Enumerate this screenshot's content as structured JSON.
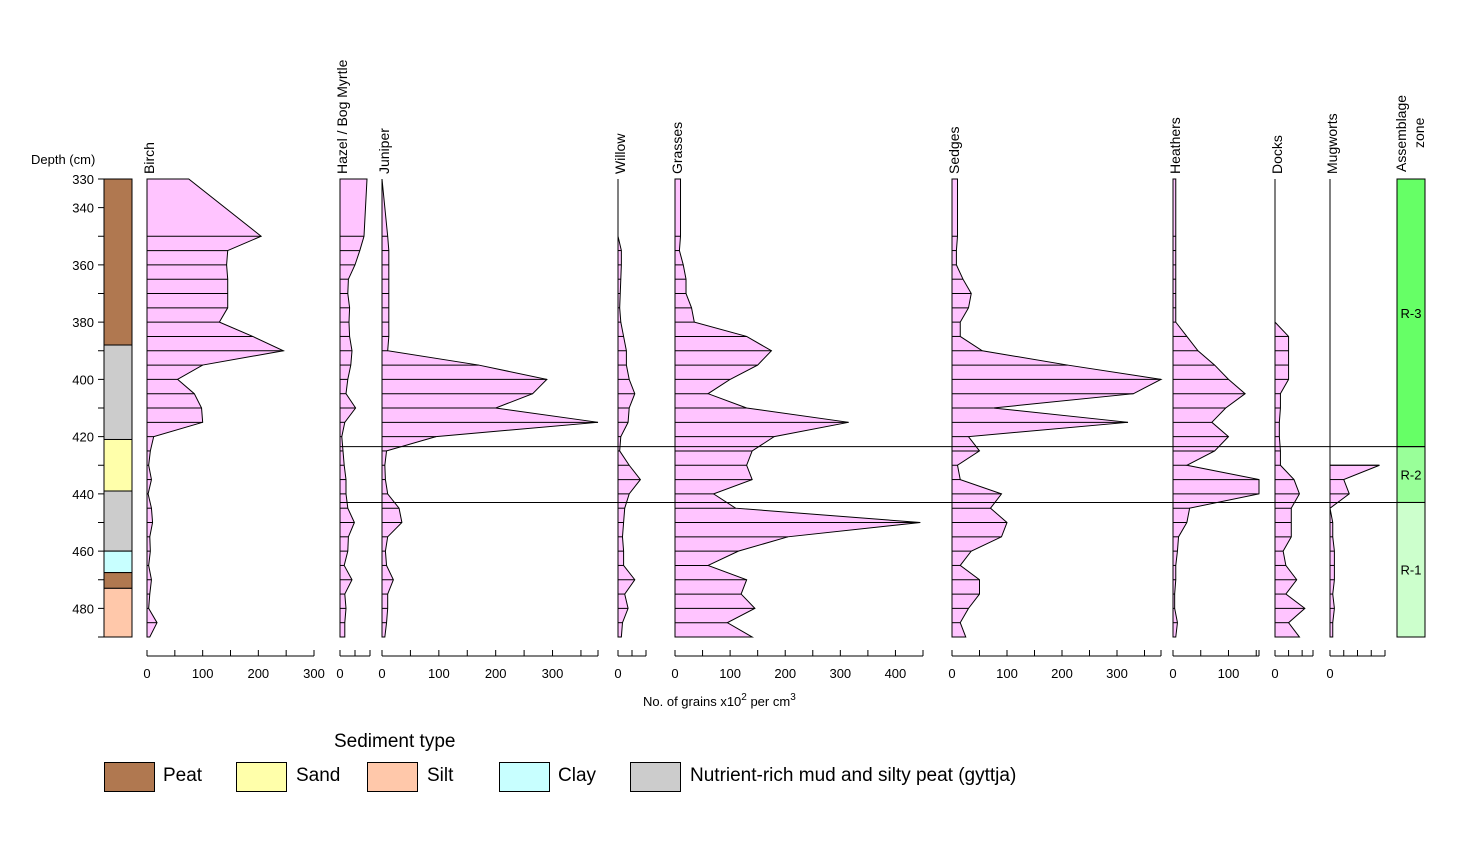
{
  "chart_data": {
    "type": "area",
    "title": "",
    "depth_label": "Depth (cm)",
    "x_label": "No. of grains x10",
    "x_label_sup": "2",
    "x_label_mid": " per cm",
    "x_label_sup2": "3",
    "depth_range": [
      330,
      490
    ],
    "depth_ticks": [
      330,
      340,
      360,
      380,
      400,
      420,
      440,
      460,
      480
    ],
    "depths": [
      330,
      350,
      355,
      360,
      365,
      370,
      375,
      380,
      385,
      390,
      395,
      400,
      405,
      410,
      415,
      420,
      425,
      430,
      435,
      440,
      445,
      450,
      455,
      460,
      465,
      470,
      475,
      480,
      485,
      490
    ],
    "fill_color": "#ffc4ff",
    "series": [
      {
        "name": "Birch",
        "max": 300,
        "ticks": [
          0,
          100,
          200,
          300
        ],
        "values": [
          75,
          205,
          145,
          143,
          145,
          145,
          145,
          130,
          190,
          245,
          100,
          55,
          85,
          98,
          100,
          12,
          6,
          3,
          8,
          2,
          8,
          10,
          5,
          6,
          3,
          8,
          5,
          3,
          18,
          5
        ]
      },
      {
        "name": "Hazel / Bog Myrtle",
        "max": 50,
        "ticks": [
          0
        ],
        "values": [
          45,
          40,
          33,
          25,
          14,
          13,
          16,
          15,
          16,
          20,
          18,
          13,
          10,
          26,
          8,
          3,
          5,
          7,
          10,
          10,
          13,
          24,
          14,
          13,
          7,
          20,
          8,
          10,
          8,
          8
        ]
      },
      {
        "name": "Juniper",
        "max": 380,
        "ticks": [
          0,
          100,
          200,
          300
        ],
        "values": [
          0,
          10,
          12,
          12,
          12,
          12,
          12,
          12,
          12,
          10,
          170,
          290,
          265,
          200,
          380,
          95,
          8,
          5,
          6,
          10,
          30,
          35,
          10,
          6,
          8,
          20,
          10,
          10,
          8,
          5
        ]
      },
      {
        "name": "Willow",
        "max": 50,
        "ticks": [
          0
        ],
        "values": [
          0,
          0,
          6,
          6,
          5,
          4,
          3,
          5,
          10,
          15,
          15,
          20,
          30,
          20,
          18,
          5,
          3,
          20,
          40,
          20,
          12,
          10,
          8,
          10,
          10,
          30,
          12,
          18,
          8,
          6
        ]
      },
      {
        "name": "Grasses",
        "max": 450,
        "ticks": [
          0,
          100,
          200,
          300,
          400
        ],
        "values": [
          10,
          10,
          8,
          15,
          20,
          20,
          30,
          35,
          130,
          175,
          150,
          100,
          60,
          130,
          315,
          180,
          140,
          130,
          140,
          70,
          110,
          445,
          205,
          115,
          60,
          130,
          120,
          145,
          95,
          140
        ]
      },
      {
        "name": "Sedges",
        "max": 380,
        "ticks": [
          0,
          100,
          200,
          300
        ],
        "values": [
          10,
          10,
          8,
          8,
          20,
          35,
          30,
          15,
          15,
          55,
          210,
          380,
          330,
          75,
          320,
          30,
          50,
          10,
          15,
          90,
          70,
          100,
          90,
          35,
          15,
          50,
          50,
          30,
          15,
          25
        ]
      },
      {
        "name": "Heathers",
        "max": 155,
        "ticks": [
          0,
          100
        ],
        "values": [
          5,
          5,
          5,
          5,
          5,
          5,
          5,
          5,
          25,
          45,
          75,
          100,
          130,
          95,
          70,
          100,
          75,
          25,
          155,
          155,
          30,
          25,
          10,
          8,
          5,
          5,
          3,
          3,
          8,
          5
        ]
      },
      {
        "name": "Docks",
        "max": 70,
        "ticks": [
          0
        ],
        "values": [
          null,
          null,
          null,
          null,
          null,
          null,
          null,
          0,
          25,
          25,
          25,
          25,
          10,
          10,
          8,
          8,
          10,
          10,
          35,
          45,
          30,
          30,
          30,
          15,
          20,
          40,
          20,
          55,
          25,
          45
        ]
      },
      {
        "name": "Mugworts",
        "max": 100,
        "ticks": [
          0
        ],
        "values": [
          null,
          null,
          null,
          null,
          null,
          null,
          null,
          null,
          null,
          null,
          null,
          null,
          null,
          null,
          null,
          null,
          null,
          90,
          25,
          35,
          0,
          5,
          5,
          8,
          8,
          8,
          5,
          8,
          5,
          5
        ]
      }
    ],
    "sediment_layers": [
      {
        "type": "peat",
        "from": 330,
        "to": 388
      },
      {
        "type": "gyttja",
        "from": 388,
        "to": 421
      },
      {
        "type": "sand",
        "from": 421,
        "to": 439
      },
      {
        "type": "gyttja",
        "from": 439,
        "to": 460
      },
      {
        "type": "clay",
        "from": 460,
        "to": 467.5
      },
      {
        "type": "peat",
        "from": 467.5,
        "to": 473
      },
      {
        "type": "silt",
        "from": 473,
        "to": 490
      }
    ],
    "zone_title_1": "Assemblage",
    "zone_title_2": "zone",
    "zones": [
      {
        "label": "R-3",
        "from": 330,
        "to": 423.5,
        "color": "#66ff66"
      },
      {
        "label": "R-2",
        "from": 423.5,
        "to": 443,
        "color": "#99ff99"
      },
      {
        "label": "R-1",
        "from": 443,
        "to": 490,
        "color": "#ccffcc"
      }
    ],
    "boundaries": [
      423.5,
      443
    ]
  },
  "legend": {
    "title": "Sediment type",
    "items": [
      {
        "key": "peat",
        "label": "Peat",
        "color": "#b07850"
      },
      {
        "key": "sand",
        "label": "Sand",
        "color": "#ffffaa"
      },
      {
        "key": "silt",
        "label": "Silt",
        "color": "#ffc8aa"
      },
      {
        "key": "clay",
        "label": "Clay",
        "color": "#c8ffff"
      },
      {
        "key": "gyttja",
        "label": "Nutrient-rich mud and silty peat (gyttja)",
        "color": "#cccccc"
      }
    ]
  }
}
